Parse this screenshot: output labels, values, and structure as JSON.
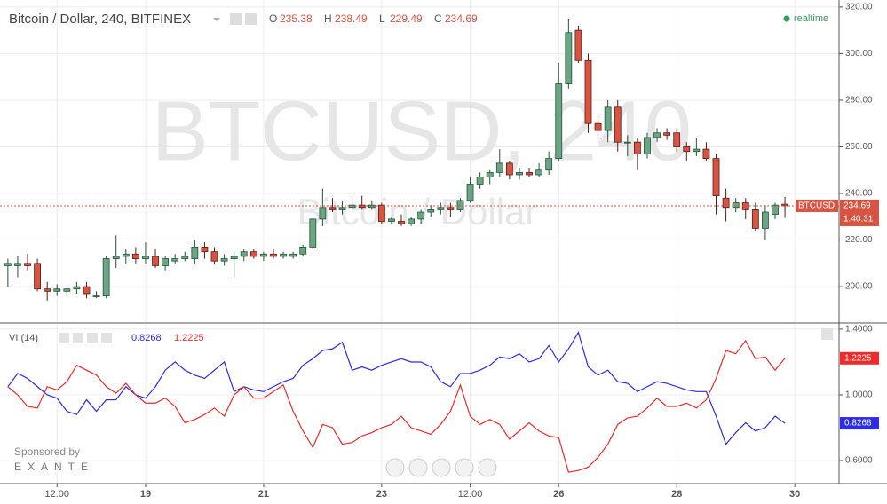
{
  "chart_data": [
    {
      "type": "candlestick",
      "title": "Bitcoin / Dollar, 240, BITFINEX",
      "ohlc_labels": [
        "O",
        "H",
        "L",
        "C"
      ],
      "realtime": "realtime",
      "watermark": [
        "BTCUSD, 240",
        "Bitcoin / Dollar"
      ],
      "symbol": "BTCUSD",
      "countdown": "1:40:31",
      "up_color": "#6ba583",
      "down_color": "#d75442",
      "open": [
        209,
        209,
        210,
        210,
        199,
        198,
        198,
        199,
        200,
        196,
        196,
        212,
        213,
        214,
        212,
        213,
        209,
        211,
        212,
        212,
        217,
        215,
        211,
        212,
        213,
        215,
        213,
        214,
        213,
        213,
        214,
        217,
        229,
        234,
        233,
        234,
        235,
        234,
        235,
        228,
        228,
        227,
        229,
        232,
        233,
        234,
        233,
        237,
        244,
        247,
        249,
        253,
        248,
        249,
        248,
        250,
        255,
        287,
        310,
        297,
        270,
        267,
        277,
        262,
        262,
        257,
        264,
        266,
        266,
        260,
        258,
        259,
        255,
        238,
        234,
        236,
        233,
        225,
        231,
        235.38
      ],
      "high": [
        212,
        213,
        214,
        212,
        202,
        201,
        200,
        202,
        202,
        198,
        213,
        222,
        216,
        217,
        219,
        216,
        213,
        214,
        215,
        220,
        219,
        217,
        214,
        215,
        216,
        216,
        215,
        216,
        215,
        215,
        218,
        229,
        242,
        238,
        237,
        238,
        239,
        237,
        236,
        230,
        231,
        230,
        233,
        235,
        236,
        236,
        238,
        247,
        249,
        250,
        259,
        254,
        251,
        251,
        253,
        258,
        296,
        315,
        312,
        300,
        274,
        280,
        280,
        265,
        264,
        266,
        268,
        268,
        268,
        262,
        264,
        262,
        257,
        242,
        238,
        238,
        236,
        235,
        236,
        238.49
      ],
      "low": [
        200,
        204,
        207,
        198,
        194,
        196,
        196,
        197,
        195,
        195,
        195,
        208,
        210,
        210,
        210,
        208,
        207,
        210,
        211,
        210,
        212,
        210,
        209,
        204,
        211,
        212,
        211,
        212,
        212,
        212,
        213,
        216,
        226,
        232,
        231,
        232,
        233,
        233,
        227,
        227,
        226,
        226,
        227,
        230,
        231,
        230,
        232,
        236,
        242,
        244,
        247,
        246,
        246,
        247,
        247,
        248,
        254,
        285,
        296,
        266,
        264,
        262,
        258,
        256,
        250,
        255,
        262,
        263,
        258,
        254,
        256,
        254,
        231,
        228,
        232,
        229,
        224,
        220,
        229,
        229.49
      ],
      "close": [
        210,
        210,
        209,
        199,
        198,
        199,
        199,
        200,
        197,
        196,
        212,
        213,
        214,
        212,
        213,
        209,
        212,
        212,
        213,
        217,
        215,
        211,
        212,
        213,
        215,
        213,
        214,
        213,
        214,
        214,
        217,
        229,
        234,
        233,
        234,
        235,
        234,
        235,
        228,
        229,
        227,
        229,
        232,
        233,
        234,
        233,
        237,
        244,
        247,
        249,
        253,
        248,
        249,
        248,
        250,
        255,
        287,
        309,
        297,
        270,
        267,
        277,
        262,
        262,
        257,
        264,
        266,
        265,
        260,
        258,
        259,
        255,
        239,
        234,
        236,
        233,
        225,
        232,
        235,
        234.69
      ],
      "xlim": [
        -0.8,
        84.5
      ],
      "xticks": [
        {
          "value": 5,
          "label": "12:00"
        },
        {
          "value": 14,
          "label": "19"
        },
        {
          "value": 26,
          "label": "21"
        },
        {
          "value": 38,
          "label": "23"
        },
        {
          "value": 47,
          "label": "12:00"
        },
        {
          "value": 56,
          "label": "26"
        },
        {
          "value": 68,
          "label": "28"
        },
        {
          "value": 80,
          "label": "30"
        }
      ],
      "ylim": [
        184.8,
        323
      ],
      "yticks": [
        {
          "value": 200,
          "label": "200.00"
        },
        {
          "value": 220,
          "label": "220.00"
        },
        {
          "value": 240,
          "label": "240.00"
        },
        {
          "value": 260,
          "label": "260.00"
        },
        {
          "value": 280,
          "label": "280.00"
        },
        {
          "value": 300,
          "label": "300.00"
        },
        {
          "value": 320,
          "label": "320.00"
        }
      ],
      "grid": true
    },
    {
      "type": "line",
      "title": "VI (14)",
      "sponsor": [
        "Sponsored by",
        "EXANTE"
      ],
      "series": [
        {
          "color": "#2c2ce0",
          "values": [
            1.05,
            1.13,
            1.1,
            1.05,
            1.0,
            0.98,
            0.9,
            0.88,
            0.97,
            0.9,
            0.97,
            0.97,
            1.05,
            1.0,
            0.98,
            1.05,
            1.15,
            1.2,
            1.15,
            1.12,
            1.1,
            1.15,
            1.2,
            1.02,
            1.05,
            1.03,
            1.02,
            1.05,
            1.08,
            1.1,
            1.18,
            1.22,
            1.27,
            1.28,
            1.32,
            1.15,
            1.17,
            1.15,
            1.18,
            1.2,
            1.22,
            1.2,
            1.2,
            1.17,
            1.08,
            1.05,
            1.13,
            1.13,
            1.15,
            1.18,
            1.23,
            1.22,
            1.25,
            1.2,
            1.22,
            1.3,
            1.2,
            1.28,
            1.38,
            1.17,
            1.12,
            1.15,
            1.08,
            1.07,
            1.02,
            1.05,
            1.08,
            1.07,
            1.05,
            1.03,
            1.02,
            1.02,
            0.87,
            0.7,
            0.77,
            0.83,
            0.78,
            0.8,
            0.87,
            0.8268
          ]
        },
        {
          "color": "#ee2a2a",
          "values": [
            1.05,
            1.0,
            0.93,
            0.92,
            1.05,
            1.03,
            1.08,
            1.18,
            1.15,
            1.12,
            1.05,
            1.01,
            1.07,
            1.0,
            0.95,
            0.95,
            0.98,
            0.93,
            0.83,
            0.85,
            0.88,
            0.92,
            0.87,
            1.0,
            1.05,
            0.98,
            0.98,
            1.02,
            1.06,
            0.9,
            0.78,
            0.68,
            0.82,
            0.8,
            0.7,
            0.71,
            0.75,
            0.77,
            0.8,
            0.82,
            0.87,
            0.8,
            0.78,
            0.76,
            0.82,
            0.9,
            1.06,
            0.87,
            0.82,
            0.85,
            0.82,
            0.73,
            0.78,
            0.83,
            0.78,
            0.75,
            0.74,
            0.53,
            0.54,
            0.56,
            0.62,
            0.7,
            0.82,
            0.86,
            0.87,
            0.92,
            0.98,
            0.93,
            0.93,
            0.95,
            0.92,
            0.97,
            1.1,
            1.27,
            1.25,
            1.33,
            1.22,
            1.23,
            1.15,
            1.2225
          ]
        }
      ],
      "ylim": [
        0.46,
        1.432
      ],
      "yticks": [
        {
          "value": 0.6,
          "label": "0.6000"
        },
        {
          "value": 1.0,
          "label": "1.0000"
        },
        {
          "value": 1.4,
          "label": "1.4000"
        }
      ],
      "grid": true
    }
  ]
}
